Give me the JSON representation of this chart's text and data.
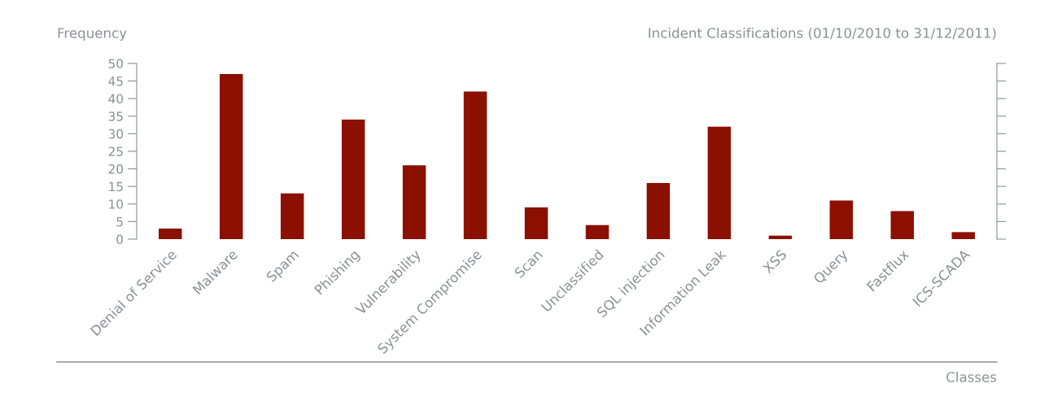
{
  "chart_data": {
    "type": "bar",
    "title": "Incident Classifications (01/10/2010 to 31/12/2011)",
    "xlabel": "Classes",
    "ylabel": "Frequency",
    "categories": [
      "Denial of Service",
      "Malware",
      "Spam",
      "Phishing",
      "Vulnerability",
      "System Compromise",
      "Scan",
      "Unclassified",
      "SQL injection",
      "Information Leak",
      "XSS",
      "Query",
      "Fastflux",
      "ICS-SCADA"
    ],
    "values": [
      3,
      47,
      13,
      34,
      21,
      42,
      9,
      4,
      16,
      32,
      1,
      11,
      8,
      2
    ],
    "color": "#8b1000",
    "ylim": [
      0,
      50
    ],
    "yticks": [
      0,
      5,
      10,
      15,
      20,
      25,
      30,
      35,
      40,
      45,
      50
    ],
    "grid": false,
    "legend": false
  }
}
